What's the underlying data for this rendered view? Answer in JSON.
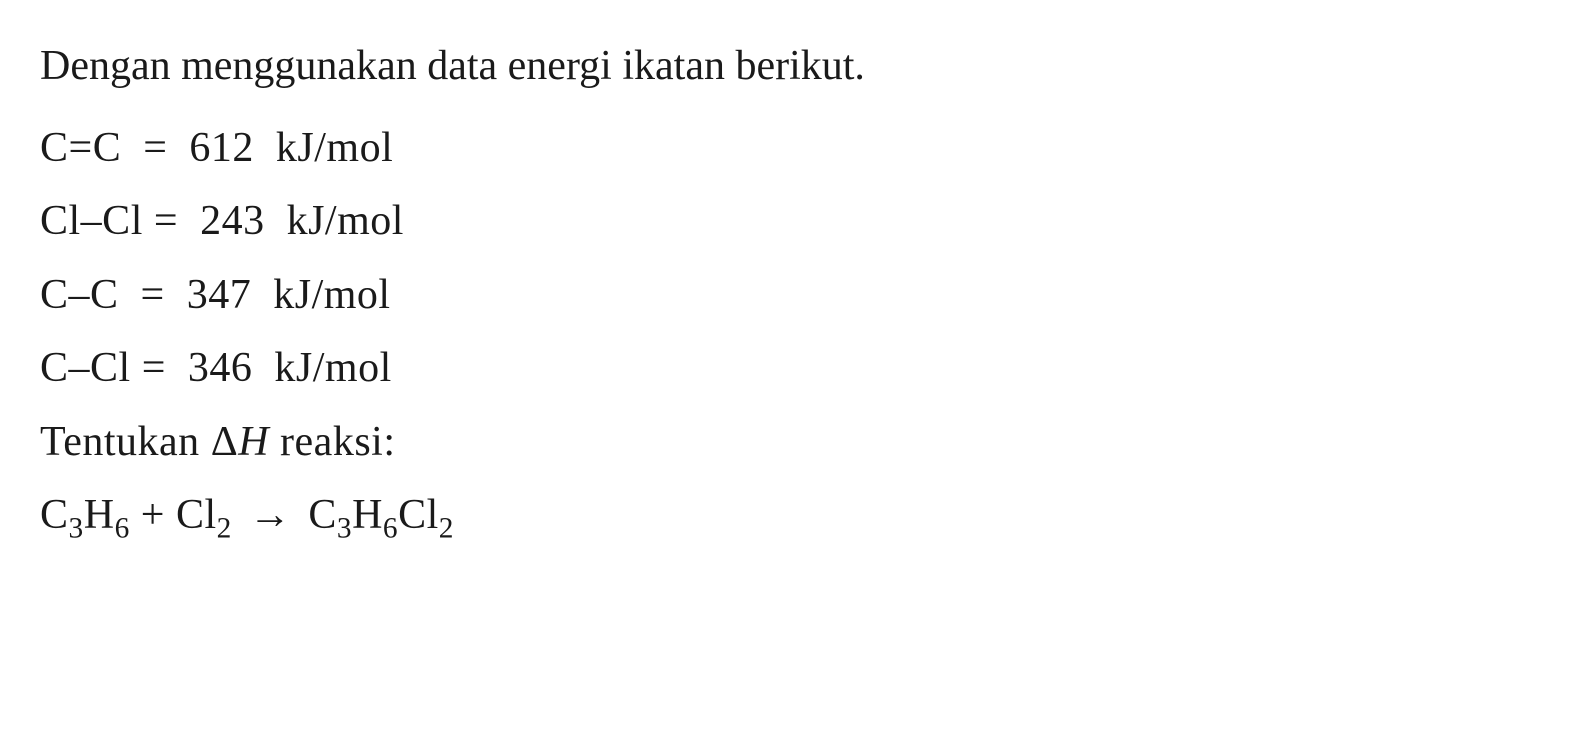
{
  "intro": "Dengan menggunakan data energi ikatan berikut.",
  "bonds": [
    {
      "lhs": "C=C",
      "val": "612",
      "unit": "kJ/mol"
    },
    {
      "lhs": "Cl–Cl",
      "val": "243",
      "unit": "kJ/mol"
    },
    {
      "lhs": "C–C",
      "val": "347",
      "unit": "kJ/mol"
    },
    {
      "lhs": "C–Cl",
      "val": "346",
      "unit": "kJ/mol"
    }
  ],
  "prompt": {
    "pre": "Tentukan ",
    "delta": "Δ",
    "H": "H",
    "post": " reaksi:"
  },
  "reaction": {
    "r1_base": "C",
    "r1_s1": "3",
    "r1_base2": "H",
    "r1_s2": "6",
    "plus": " + ",
    "r2_base": "Cl",
    "r2_s1": "2",
    "arrow": "→",
    "p_base": "C",
    "p_s1": "3",
    "p_base2": "H",
    "p_s2": "6",
    "p_base3": "Cl",
    "p_s3": "2"
  },
  "style": {
    "font_size_pt": 42,
    "text_color": "#1a1a1a",
    "background_color": "#ffffff",
    "font_family": "Georgia, Times New Roman, serif"
  }
}
